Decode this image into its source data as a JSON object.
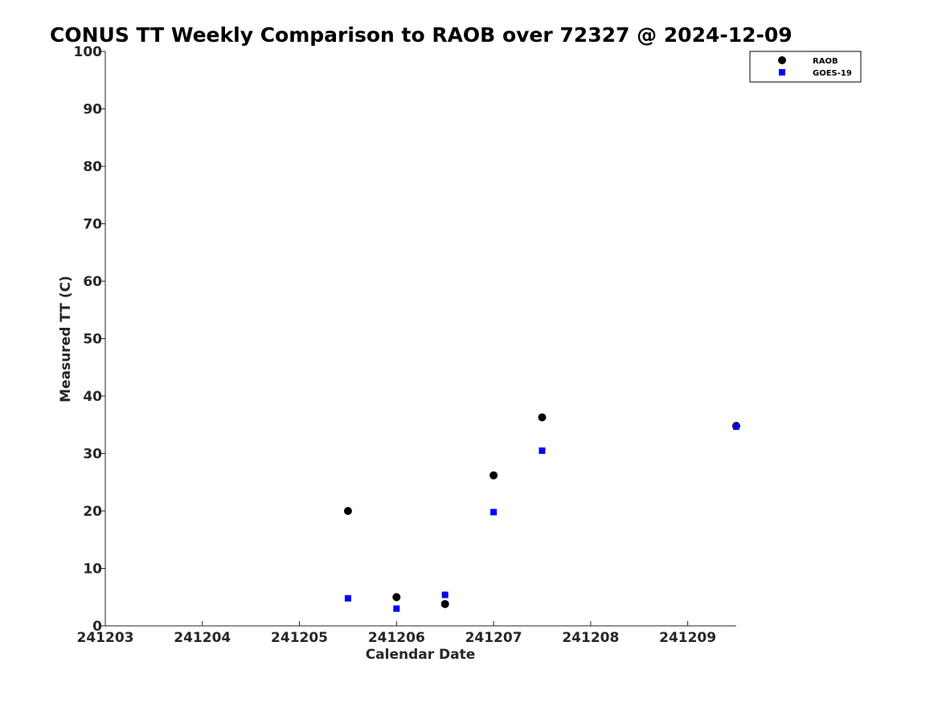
{
  "chart_data": {
    "type": "scatter",
    "title": "CONUS TT Weekly Comparison to RAOB over 72327 @ 2024-12-09",
    "xlabel": "Calendar Date",
    "ylabel": "Measured TT (C)",
    "xlim": [
      241203,
      241209.5
    ],
    "ylim": [
      0,
      100
    ],
    "x_ticks": [
      241203,
      241204,
      241205,
      241206,
      241207,
      241208,
      241209
    ],
    "x_tick_labels": [
      "241203",
      "241204",
      "241205",
      "241206",
      "241207",
      "241208",
      "241209"
    ],
    "y_ticks": [
      0,
      10,
      20,
      30,
      40,
      50,
      60,
      70,
      80,
      90,
      100
    ],
    "y_tick_labels": [
      "0",
      "10",
      "20",
      "30",
      "40",
      "50",
      "60",
      "70",
      "80",
      "90",
      "100"
    ],
    "grid": false,
    "legend_position": "top-right",
    "series": [
      {
        "name": "RAOB",
        "marker": "circle",
        "color": "#000000",
        "x": [
          241205.5,
          241206.0,
          241206.5,
          241207.0,
          241207.5,
          241209.5
        ],
        "y": [
          20.0,
          5.0,
          3.8,
          26.2,
          36.3,
          34.8
        ]
      },
      {
        "name": "GOES-19",
        "marker": "square",
        "color": "#0000ff",
        "x": [
          241205.5,
          241206.0,
          241206.5,
          241207.0,
          241207.5,
          241209.5
        ],
        "y": [
          4.8,
          3.0,
          5.4,
          19.8,
          30.5,
          34.7
        ]
      }
    ]
  }
}
